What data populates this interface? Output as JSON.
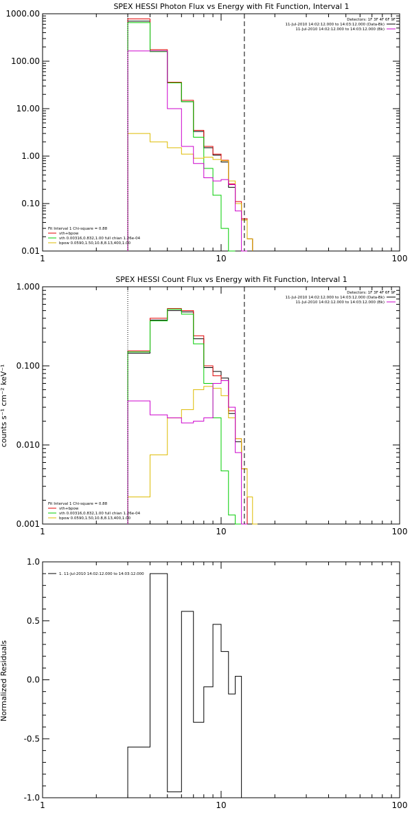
{
  "colors": {
    "data": "#000000",
    "total": "#e00000",
    "vth": "#00cc00",
    "bpow": "#ddbb00",
    "background": "#cc00cc",
    "axes": "#000000"
  },
  "chart_data": [
    {
      "type": "line",
      "title": "SPEX HESSI Photon Flux vs Energy with Fit Function, Interval 1",
      "xscale": "log",
      "yscale": "log",
      "xlim": [
        1,
        100
      ],
      "ylim": [
        0.01,
        1000
      ],
      "xticks": [
        "1",
        "10",
        "100"
      ],
      "yticks": [
        "1000.00",
        "100.00",
        "10.00",
        "1.00",
        "0.10",
        "0.01"
      ],
      "fit_lines": [
        3.0,
        13.5
      ],
      "legend_right": [
        "Detectors: 1F 3F 4F 6F 9F",
        "11-Jul-2010 14:02:12.000 to 14:03:12.000 (Data-Bk)",
        "11-Jul-2010 14:02:12.000 to 14:03:12.000 (Bk)"
      ],
      "legend_left": [
        "Fit Interval 1    Chi-square = 0.88",
        "vth+bpow",
        "vth 0.00316,0.832,1.00   full chian 1.26e-04",
        "bpow 0.0590,1.50,10.8,8.13,400,1.00"
      ],
      "edges": [
        3.0,
        4.0,
        5.0,
        6.0,
        7.0,
        8.0,
        9.0,
        10.0,
        11.0,
        12.0,
        13.0,
        14.0,
        15.0,
        16.0,
        17.0
      ],
      "series": [
        {
          "key": "data",
          "values": [
            700,
            160,
            35,
            14,
            3.3,
            1.5,
            1.05,
            0.75,
            0.22,
            0.1,
            0.045,
            0.018,
            null,
            null
          ]
        },
        {
          "key": "total",
          "values": [
            780,
            175,
            36,
            15,
            3.5,
            1.6,
            1.1,
            0.82,
            0.26,
            0.11,
            0.048,
            0.018,
            null,
            null
          ]
        },
        {
          "key": "vth",
          "values": [
            650,
            160,
            35,
            14,
            2.5,
            0.55,
            0.15,
            0.03,
            0.006,
            null,
            null,
            null,
            null,
            null
          ]
        },
        {
          "key": "bpow",
          "values": [
            3.0,
            2.0,
            1.5,
            1.1,
            0.9,
            0.95,
            0.85,
            0.8,
            0.3,
            0.1,
            0.045,
            0.018,
            null,
            null
          ]
        },
        {
          "key": "background",
          "values": [
            165,
            165,
            10,
            1.6,
            0.7,
            0.35,
            0.3,
            0.32,
            0.25,
            0.07,
            0.005,
            null,
            null,
            null
          ]
        }
      ]
    },
    {
      "type": "line",
      "title": "SPEX HESSI Count Flux vs Energy with Fit Function, Interval 1",
      "ylabel": "counts s⁻¹ cm⁻² keV⁻¹",
      "xscale": "log",
      "yscale": "log",
      "xlim": [
        1,
        100
      ],
      "ylim": [
        0.001,
        1
      ],
      "xticks": [
        "1",
        "10",
        "100"
      ],
      "yticks": [
        "1.000",
        "0.100",
        "0.010",
        "0.001"
      ],
      "fit_lines": [
        3.0,
        13.5
      ],
      "legend_right": [
        "Detectors: 1F 3F 4F 6F 9F",
        "11-Jul-2010 14:02:12.000 to 14:03:12.000 (Data-Bk)",
        "11-Jul-2010 14:02:12.000 to 14:03:12.000 (Bk)"
      ],
      "legend_left": [
        "Fit Interval 1    Chi-square = 0.88",
        "vth+bpow",
        "vth 0.00316,0.832,1.00   full chian 1.26e-04",
        "bpow 0.0590,1.50,10.8,8.13,400,1.00"
      ],
      "edges": [
        3.0,
        4.0,
        5.0,
        6.0,
        7.0,
        8.0,
        9.0,
        10.0,
        11.0,
        12.0,
        13.0,
        14.0,
        15.0,
        16.0,
        17.0
      ],
      "series": [
        {
          "key": "data",
          "values": [
            0.145,
            0.38,
            0.5,
            0.48,
            0.22,
            0.095,
            0.085,
            0.07,
            0.025,
            0.011,
            0.005,
            null,
            null,
            null
          ]
        },
        {
          "key": "total",
          "values": [
            0.155,
            0.4,
            0.53,
            0.5,
            0.24,
            0.1,
            0.075,
            0.065,
            0.027,
            0.012,
            0.005,
            null,
            null,
            null
          ]
        },
        {
          "key": "vth",
          "values": [
            0.15,
            0.37,
            0.52,
            0.45,
            0.19,
            0.06,
            0.022,
            0.0047,
            0.0013,
            0.0009,
            null,
            null,
            null,
            null
          ]
        },
        {
          "key": "bpow",
          "values": [
            0.0022,
            0.0075,
            0.022,
            0.028,
            0.05,
            0.055,
            0.052,
            0.042,
            0.022,
            0.012,
            0.005,
            0.0022,
            0.001,
            null
          ]
        },
        {
          "key": "background",
          "values": [
            0.036,
            0.024,
            0.022,
            0.019,
            0.02,
            0.022,
            0.06,
            0.065,
            0.03,
            0.008,
            0.001,
            null,
            null,
            null
          ]
        }
      ]
    },
    {
      "type": "line",
      "ylabel": "Normalized Residuals",
      "xscale": "log",
      "yscale": "linear",
      "xlim": [
        1,
        100
      ],
      "ylim": [
        -1.0,
        1.0
      ],
      "xticks": [
        "1",
        "10",
        "100"
      ],
      "yticks": [
        "1.0",
        "0.5",
        "0.0",
        "-0.5",
        "-1.0"
      ],
      "legend_left": [
        "1. 11-Jul-2010 14:02:12.000 to 14:03:12.000"
      ],
      "edges": [
        3.0,
        4.0,
        5.0,
        6.0,
        7.0,
        8.0,
        9.0,
        10.0,
        11.0,
        12.0,
        13.0
      ],
      "series": [
        {
          "key": "data",
          "values": [
            -0.57,
            0.9,
            -0.95,
            0.58,
            -0.36,
            -0.06,
            0.47,
            0.24,
            -0.12,
            0.03
          ]
        }
      ]
    }
  ]
}
